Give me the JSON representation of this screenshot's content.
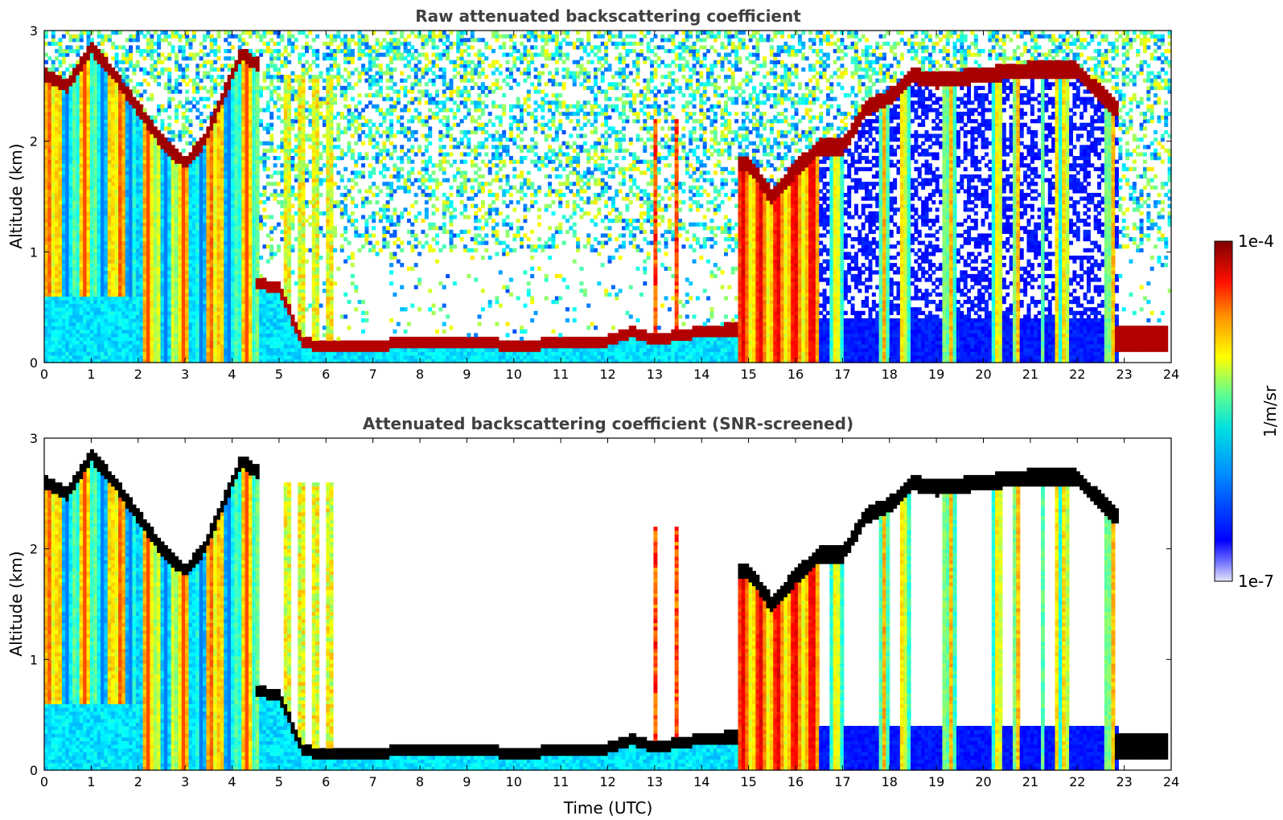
{
  "chart_data": [
    {
      "type": "heatmap",
      "title": "Raw attenuated backscattering coefficient",
      "xlabel": "",
      "ylabel": "Altitude (km)",
      "xlim": [
        0,
        24
      ],
      "ylim": [
        0,
        3
      ],
      "xticks": [
        "0",
        "1",
        "2",
        "3",
        "4",
        "5",
        "6",
        "7",
        "8",
        "9",
        "10",
        "11",
        "12",
        "13",
        "14",
        "15",
        "16",
        "17",
        "18",
        "19",
        "20",
        "21",
        "22",
        "23",
        "24"
      ],
      "yticks": [
        "0",
        "1",
        "2",
        "3"
      ],
      "log_scale_colors": true,
      "screened": false,
      "features": {
        "cloud_base_km": {
          "time_h": [
            0,
            0.5,
            1,
            1.5,
            2,
            2.5,
            3,
            3.4,
            4.2,
            4.5
          ],
          "alt_km": [
            2.6,
            2.5,
            2.85,
            2.6,
            2.3,
            2.0,
            1.8,
            2.0,
            2.8,
            2.7
          ]
        },
        "aerosol_layer_km": {
          "time_h": [
            4.5,
            5.0,
            5.5,
            6,
            7,
            8,
            9,
            10,
            11,
            12,
            12.5,
            13,
            13.5,
            14,
            14.5
          ],
          "alt_km": [
            0.72,
            0.68,
            0.18,
            0.15,
            0.16,
            0.18,
            0.2,
            0.15,
            0.18,
            0.2,
            0.28,
            0.2,
            0.25,
            0.28,
            0.3
          ]
        },
        "evening_cloud_km": {
          "time_h": [
            15,
            15.5,
            16,
            16.5,
            17,
            17.5,
            18,
            18.5,
            19,
            20,
            21,
            22,
            22.8
          ],
          "alt_km": [
            1.8,
            1.5,
            1.75,
            1.95,
            1.95,
            2.3,
            2.4,
            2.6,
            2.55,
            2.6,
            2.65,
            2.65,
            2.3
          ]
        }
      }
    },
    {
      "type": "heatmap",
      "title": "Attenuated backscattering coefficient (SNR-screened)",
      "xlabel": "Time (UTC)",
      "ylabel": "Altitude (km)",
      "xlim": [
        0,
        24
      ],
      "ylim": [
        0,
        3
      ],
      "xticks": [
        "0",
        "1",
        "2",
        "3",
        "4",
        "5",
        "6",
        "7",
        "8",
        "9",
        "10",
        "11",
        "12",
        "13",
        "14",
        "15",
        "16",
        "17",
        "18",
        "19",
        "20",
        "21",
        "22",
        "23",
        "24"
      ],
      "yticks": [
        "0",
        "1",
        "2",
        "3"
      ],
      "log_scale_colors": true,
      "screened": true
    }
  ],
  "colorbar": {
    "label": "1/m/sr",
    "max_label": "1e-4",
    "min_label": "1e-7",
    "colormap": "jet",
    "colors": [
      "#e6e6fa",
      "#0000ff",
      "#00bfff",
      "#40ffbf",
      "#ffff00",
      "#ff8000",
      "#ff0000",
      "#800000"
    ]
  }
}
